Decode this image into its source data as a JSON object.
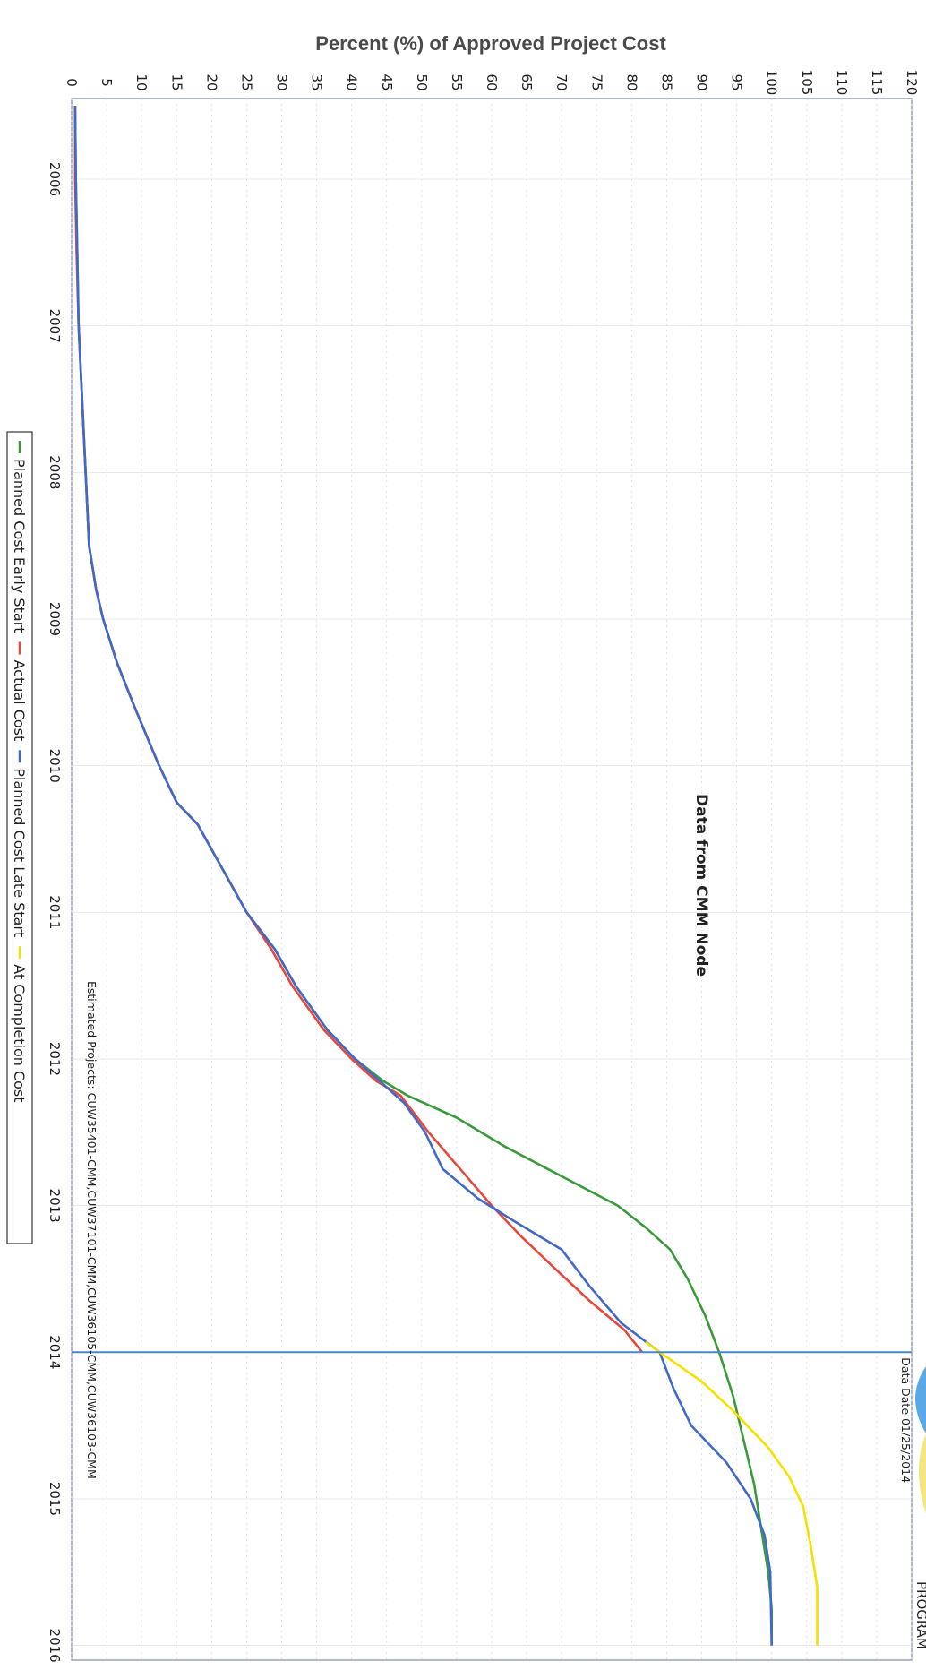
{
  "chart_data": {
    "type": "line",
    "orientation": "rotated-90-clockwise",
    "ylabel": "Percent (%) of Approved Project Cost",
    "ylim": [
      0,
      120
    ],
    "yticks": [
      "0",
      "5",
      "10",
      "15",
      "20",
      "25",
      "30",
      "35",
      "40",
      "45",
      "50",
      "55",
      "60",
      "65",
      "70",
      "75",
      "80",
      "85",
      "90",
      "95",
      "100",
      "105",
      "110",
      "115",
      "120"
    ],
    "xlim": [
      2005.45,
      2016.1
    ],
    "xticks": [
      "2006",
      "2007",
      "2008",
      "2009",
      "2010",
      "2011",
      "2012",
      "2013",
      "2014",
      "2015",
      "2016"
    ],
    "annotation_title": "Data from CMM Node",
    "data_date_label": "Data Date  01/25/2014",
    "data_date": 2014.0,
    "estimated_projects_note": "Estimated Projects: CUW35401-CMM,CUW37101-CMM,CUW36105-CMM,CUW36103-CMM",
    "grid": true,
    "legend_position": "bottom",
    "series": [
      {
        "name": "Planned Cost Early Start",
        "color": "#3a9a3a",
        "points": [
          [
            2005.5,
            0.5
          ],
          [
            2006.0,
            0.6
          ],
          [
            2006.5,
            0.8
          ],
          [
            2007.0,
            1.0
          ],
          [
            2007.5,
            1.5
          ],
          [
            2008.0,
            2.0
          ],
          [
            2008.5,
            2.5
          ],
          [
            2008.8,
            3.5
          ],
          [
            2009.0,
            4.5
          ],
          [
            2009.3,
            6.5
          ],
          [
            2009.6,
            9.0
          ],
          [
            2010.0,
            12.5
          ],
          [
            2010.25,
            15.0
          ],
          [
            2010.4,
            18.0
          ],
          [
            2010.7,
            21.5
          ],
          [
            2011.0,
            25.0
          ],
          [
            2011.25,
            29.0
          ],
          [
            2011.5,
            32.0
          ],
          [
            2011.8,
            36.5
          ],
          [
            2012.0,
            40.5
          ],
          [
            2012.15,
            44.5
          ],
          [
            2012.25,
            48.0
          ],
          [
            2012.4,
            55.0
          ],
          [
            2012.6,
            62.0
          ],
          [
            2012.85,
            72.0
          ],
          [
            2013.0,
            78.0
          ],
          [
            2013.15,
            82.0
          ],
          [
            2013.3,
            85.5
          ],
          [
            2013.5,
            88.0
          ],
          [
            2013.75,
            90.5
          ],
          [
            2014.0,
            92.5
          ],
          [
            2014.3,
            94.5
          ],
          [
            2014.6,
            96.0
          ],
          [
            2014.9,
            97.5
          ],
          [
            2015.2,
            98.5
          ],
          [
            2015.5,
            99.5
          ],
          [
            2015.75,
            100.0
          ],
          [
            2016.0,
            100.0
          ]
        ]
      },
      {
        "name": "Actual Cost",
        "color": "#e8473b",
        "points": [
          [
            2005.5,
            0.5
          ],
          [
            2006.0,
            0.5
          ],
          [
            2006.5,
            0.7
          ],
          [
            2007.0,
            1.0
          ],
          [
            2007.5,
            1.5
          ],
          [
            2008.0,
            2.0
          ],
          [
            2008.5,
            2.5
          ],
          [
            2008.8,
            3.5
          ],
          [
            2009.0,
            4.5
          ],
          [
            2009.3,
            6.5
          ],
          [
            2009.6,
            9.0
          ],
          [
            2010.0,
            12.5
          ],
          [
            2010.25,
            15.0
          ],
          [
            2010.4,
            18.0
          ],
          [
            2010.7,
            21.5
          ],
          [
            2011.0,
            25.0
          ],
          [
            2011.25,
            28.5
          ],
          [
            2011.5,
            31.5
          ],
          [
            2011.8,
            36.0
          ],
          [
            2012.0,
            40.0
          ],
          [
            2012.15,
            43.5
          ],
          [
            2012.25,
            47.0
          ],
          [
            2012.5,
            51.0
          ],
          [
            2012.75,
            55.5
          ],
          [
            2013.0,
            60.0
          ],
          [
            2013.2,
            64.0
          ],
          [
            2013.45,
            69.5
          ],
          [
            2013.65,
            74.0
          ],
          [
            2013.85,
            79.0
          ],
          [
            2014.0,
            81.5
          ]
        ]
      },
      {
        "name": "Planned Cost Late Start",
        "color": "#4169c8",
        "points": [
          [
            2005.5,
            0.5
          ],
          [
            2006.0,
            0.6
          ],
          [
            2006.5,
            0.8
          ],
          [
            2007.0,
            1.0
          ],
          [
            2007.5,
            1.5
          ],
          [
            2008.0,
            2.0
          ],
          [
            2008.5,
            2.5
          ],
          [
            2008.8,
            3.5
          ],
          [
            2009.0,
            4.5
          ],
          [
            2009.3,
            6.5
          ],
          [
            2009.6,
            9.0
          ],
          [
            2010.0,
            12.5
          ],
          [
            2010.25,
            15.0
          ],
          [
            2010.4,
            18.0
          ],
          [
            2010.7,
            21.5
          ],
          [
            2011.0,
            25.0
          ],
          [
            2011.25,
            29.0
          ],
          [
            2011.5,
            32.0
          ],
          [
            2011.8,
            36.5
          ],
          [
            2012.0,
            40.5
          ],
          [
            2012.15,
            44.0
          ],
          [
            2012.3,
            47.5
          ],
          [
            2012.5,
            50.5
          ],
          [
            2012.75,
            53.0
          ],
          [
            2012.95,
            58.0
          ],
          [
            2013.1,
            63.0
          ],
          [
            2013.3,
            70.0
          ],
          [
            2013.55,
            74.0
          ],
          [
            2013.8,
            78.5
          ],
          [
            2014.0,
            84.0
          ],
          [
            2014.25,
            86.0
          ],
          [
            2014.5,
            88.5
          ],
          [
            2014.75,
            93.5
          ],
          [
            2015.0,
            97.0
          ],
          [
            2015.25,
            99.0
          ],
          [
            2015.5,
            99.8
          ],
          [
            2016.0,
            100.0
          ]
        ]
      },
      {
        "name": "At Completion Cost",
        "color": "#f5e000",
        "points": [
          [
            2013.93,
            82.0
          ],
          [
            2014.0,
            84.0
          ],
          [
            2014.2,
            90.0
          ],
          [
            2014.4,
            94.5
          ],
          [
            2014.65,
            99.5
          ],
          [
            2014.85,
            102.5
          ],
          [
            2015.05,
            104.5
          ],
          [
            2015.3,
            105.5
          ],
          [
            2015.6,
            106.5
          ],
          [
            2016.0,
            106.5
          ]
        ]
      }
    ]
  },
  "legend": {
    "items": [
      {
        "label": "Planned Cost Early Start",
        "color": "#3a9a3a"
      },
      {
        "label": "Actual Cost",
        "color": "#e8473b"
      },
      {
        "label": "Planned Cost Late Start",
        "color": "#4169c8"
      },
      {
        "label": "At Completion Cost",
        "color": "#f5e000"
      }
    ]
  },
  "corner": {
    "logo_text": "PROGRAM"
  }
}
